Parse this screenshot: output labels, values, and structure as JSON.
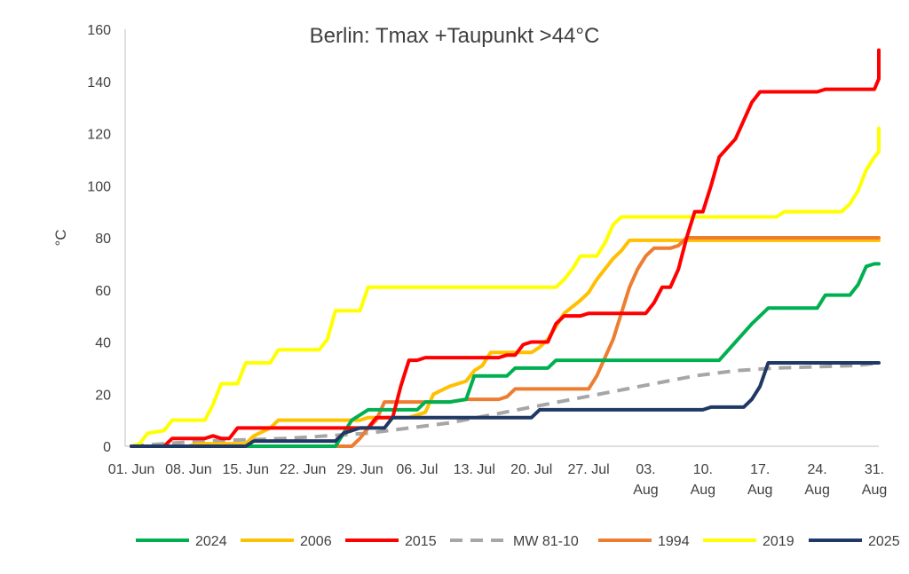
{
  "chart_data": {
    "type": "line",
    "title": "Berlin:  Tmax +Taupunkt  >44°C",
    "ylabel": "°C",
    "xlabel": "",
    "ylim": [
      0,
      160
    ],
    "yticks": [
      0,
      20,
      40,
      60,
      80,
      100,
      120,
      140,
      160
    ],
    "xlim": [
      1,
      92
    ],
    "xticks": [
      {
        "day": 1,
        "label": [
          "01. Jun"
        ]
      },
      {
        "day": 8,
        "label": [
          "08. Jun"
        ]
      },
      {
        "day": 15,
        "label": [
          "15. Jun"
        ]
      },
      {
        "day": 22,
        "label": [
          "22. Jun"
        ]
      },
      {
        "day": 29,
        "label": [
          "29. Jun"
        ]
      },
      {
        "day": 36,
        "label": [
          "06. Jul"
        ]
      },
      {
        "day": 43,
        "label": [
          "13. Jul"
        ]
      },
      {
        "day": 50,
        "label": [
          "20. Jul"
        ]
      },
      {
        "day": 57,
        "label": [
          "27. Jul"
        ]
      },
      {
        "day": 64,
        "label": [
          "03.",
          "Aug"
        ]
      },
      {
        "day": 71,
        "label": [
          "10.",
          "Aug"
        ]
      },
      {
        "day": 78,
        "label": [
          "17.",
          "Aug"
        ]
      },
      {
        "day": 85,
        "label": [
          "24.",
          "Aug"
        ]
      },
      {
        "day": 92,
        "label": [
          "31.",
          "Aug"
        ]
      }
    ],
    "grid": false,
    "legend": "bottom",
    "series": [
      {
        "name": "2024",
        "color": "#00b050",
        "dash": false,
        "points": [
          [
            1,
            0
          ],
          [
            26,
            0
          ],
          [
            27,
            5
          ],
          [
            28,
            10
          ],
          [
            30,
            14
          ],
          [
            34,
            14
          ],
          [
            36,
            14
          ],
          [
            37,
            17
          ],
          [
            40,
            17
          ],
          [
            42,
            18
          ],
          [
            43,
            27
          ],
          [
            45,
            27
          ],
          [
            47,
            27
          ],
          [
            48,
            30
          ],
          [
            50,
            30
          ],
          [
            52,
            30
          ],
          [
            53,
            33
          ],
          [
            60,
            33
          ],
          [
            70,
            33
          ],
          [
            73,
            33
          ],
          [
            75,
            40
          ],
          [
            77,
            47
          ],
          [
            79,
            53
          ],
          [
            85,
            53
          ],
          [
            86,
            58
          ],
          [
            89,
            58
          ],
          [
            90,
            62
          ],
          [
            91,
            69
          ],
          [
            92,
            70
          ],
          [
            93,
            70
          ]
        ]
      },
      {
        "name": "2006",
        "color": "#ffc000",
        "dash": false,
        "points": [
          [
            1,
            0
          ],
          [
            8,
            0
          ],
          [
            9,
            1
          ],
          [
            14,
            1
          ],
          [
            15,
            1
          ],
          [
            16,
            4
          ],
          [
            18,
            7
          ],
          [
            19,
            10
          ],
          [
            26,
            10
          ],
          [
            29,
            10
          ],
          [
            30,
            11
          ],
          [
            35,
            11
          ],
          [
            37,
            13
          ],
          [
            38,
            20
          ],
          [
            40,
            23
          ],
          [
            42,
            25
          ],
          [
            43,
            29
          ],
          [
            44,
            31
          ],
          [
            45,
            36
          ],
          [
            50,
            36
          ],
          [
            51,
            38
          ],
          [
            52,
            41
          ],
          [
            53,
            46
          ],
          [
            54,
            51
          ],
          [
            56,
            56
          ],
          [
            57,
            59
          ],
          [
            58,
            64
          ],
          [
            60,
            72
          ],
          [
            61,
            75
          ],
          [
            62,
            79
          ],
          [
            68,
            79
          ],
          [
            93,
            79
          ]
        ]
      },
      {
        "name": "2015",
        "color": "#ff0000",
        "dash": false,
        "points": [
          [
            1,
            0
          ],
          [
            5,
            0
          ],
          [
            6,
            3
          ],
          [
            10,
            3
          ],
          [
            11,
            4
          ],
          [
            12,
            3
          ],
          [
            13,
            3
          ],
          [
            14,
            7
          ],
          [
            28,
            7
          ],
          [
            30,
            7
          ],
          [
            31,
            11
          ],
          [
            33,
            11
          ],
          [
            34,
            23
          ],
          [
            35,
            33
          ],
          [
            36,
            33
          ],
          [
            37,
            34
          ],
          [
            45,
            34
          ],
          [
            46,
            34
          ],
          [
            47,
            35
          ],
          [
            48,
            35
          ],
          [
            49,
            39
          ],
          [
            50,
            40
          ],
          [
            52,
            40
          ],
          [
            53,
            47
          ],
          [
            54,
            50
          ],
          [
            56,
            50
          ],
          [
            57,
            51
          ],
          [
            63,
            51
          ],
          [
            64,
            51
          ],
          [
            65,
            55
          ],
          [
            66,
            61
          ],
          [
            67,
            61
          ],
          [
            68,
            68
          ],
          [
            69,
            80
          ],
          [
            70,
            90
          ],
          [
            71,
            90
          ],
          [
            72,
            100
          ],
          [
            73,
            111
          ],
          [
            75,
            118
          ],
          [
            76,
            125
          ],
          [
            77,
            132
          ],
          [
            78,
            136
          ],
          [
            85,
            136
          ],
          [
            86,
            137
          ],
          [
            92,
            137
          ],
          [
            93,
            141
          ],
          [
            94,
            152
          ]
        ]
      },
      {
        "name": "MW 81-10",
        "color": "#a6a6a6",
        "dash": true,
        "points": [
          [
            1,
            0
          ],
          [
            5,
            1
          ],
          [
            10,
            2
          ],
          [
            15,
            2.5
          ],
          [
            20,
            3
          ],
          [
            25,
            4
          ],
          [
            30,
            5
          ],
          [
            35,
            7
          ],
          [
            40,
            9
          ],
          [
            45,
            12
          ],
          [
            50,
            15
          ],
          [
            55,
            18
          ],
          [
            60,
            21
          ],
          [
            65,
            24
          ],
          [
            70,
            27
          ],
          [
            75,
            29
          ],
          [
            80,
            30
          ],
          [
            85,
            30.5
          ],
          [
            90,
            31
          ],
          [
            94,
            32
          ]
        ]
      },
      {
        "name": "1994",
        "color": "#ed7d31",
        "dash": false,
        "points": [
          [
            1,
            0
          ],
          [
            14,
            0
          ],
          [
            15,
            0
          ],
          [
            28,
            0
          ],
          [
            29,
            3
          ],
          [
            30,
            7
          ],
          [
            31,
            10
          ],
          [
            32,
            17
          ],
          [
            40,
            17
          ],
          [
            42,
            18
          ],
          [
            45,
            18
          ],
          [
            46,
            18
          ],
          [
            47,
            19
          ],
          [
            48,
            22
          ],
          [
            55,
            22
          ],
          [
            57,
            22
          ],
          [
            58,
            27
          ],
          [
            59,
            34
          ],
          [
            60,
            41
          ],
          [
            61,
            51
          ],
          [
            62,
            61
          ],
          [
            63,
            68
          ],
          [
            64,
            73
          ],
          [
            65,
            76
          ],
          [
            67,
            76
          ],
          [
            68,
            77
          ],
          [
            69,
            80
          ],
          [
            80,
            80
          ],
          [
            93,
            80
          ]
        ]
      },
      {
        "name": "2019",
        "color": "#ffff00",
        "dash": false,
        "points": [
          [
            1,
            0
          ],
          [
            2,
            1
          ],
          [
            3,
            5
          ],
          [
            5,
            6
          ],
          [
            6,
            10
          ],
          [
            10,
            10
          ],
          [
            11,
            16
          ],
          [
            12,
            24
          ],
          [
            14,
            24
          ],
          [
            15,
            32
          ],
          [
            18,
            32
          ],
          [
            19,
            37
          ],
          [
            24,
            37
          ],
          [
            25,
            41
          ],
          [
            26,
            52
          ],
          [
            29,
            52
          ],
          [
            30,
            61
          ],
          [
            52,
            61
          ],
          [
            53,
            61
          ],
          [
            54,
            64
          ],
          [
            55,
            68
          ],
          [
            56,
            73
          ],
          [
            58,
            73
          ],
          [
            59,
            78
          ],
          [
            60,
            85
          ],
          [
            61,
            88
          ],
          [
            69,
            88
          ],
          [
            80,
            88
          ],
          [
            81,
            90
          ],
          [
            88,
            90
          ],
          [
            89,
            93
          ],
          [
            90,
            98
          ],
          [
            91,
            106
          ],
          [
            92,
            111
          ],
          [
            93,
            113
          ],
          [
            94,
            115
          ],
          [
            95,
            122
          ]
        ]
      },
      {
        "name": "2025",
        "color": "#203864",
        "dash": false,
        "points": [
          [
            1,
            0
          ],
          [
            15,
            0
          ],
          [
            16,
            2
          ],
          [
            26,
            2
          ],
          [
            27,
            5
          ],
          [
            29,
            7
          ],
          [
            32,
            7
          ],
          [
            33,
            11
          ],
          [
            50,
            11
          ],
          [
            51,
            14
          ],
          [
            71,
            14
          ],
          [
            72,
            15
          ],
          [
            76,
            15
          ],
          [
            77,
            18
          ],
          [
            78,
            23
          ],
          [
            79,
            32
          ],
          [
            93,
            32
          ]
        ]
      }
    ]
  }
}
